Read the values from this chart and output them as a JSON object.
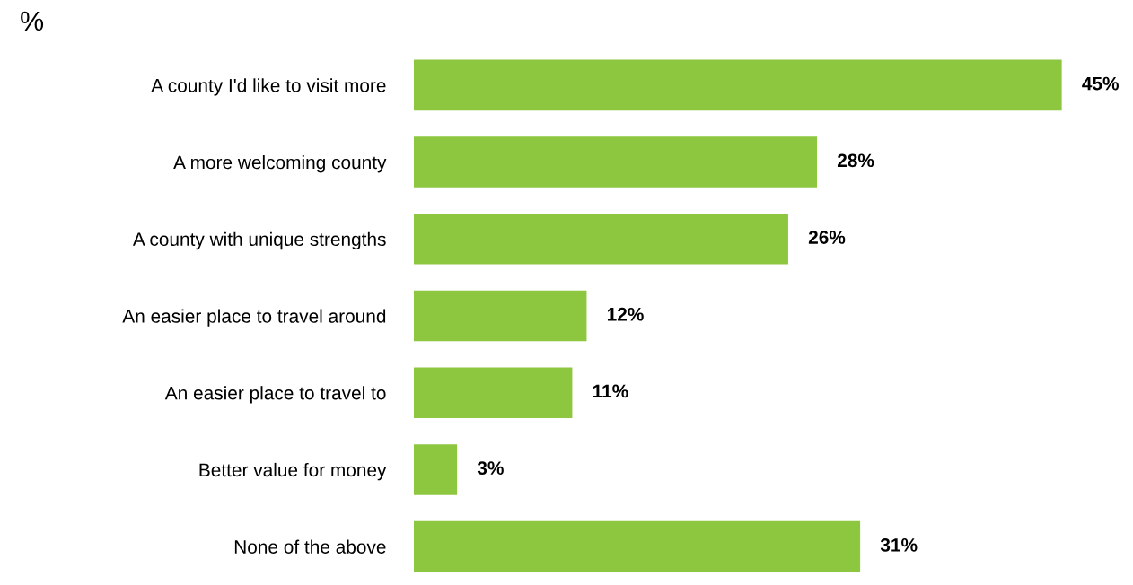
{
  "chart_data": {
    "type": "bar",
    "orientation": "horizontal",
    "title": "%",
    "categories": [
      "A county I'd like to visit more",
      "A more welcoming county",
      "A county with unique strengths",
      "An easier place to travel around",
      "An easier place to travel to",
      "Better value for money",
      "None of the above"
    ],
    "values": [
      45,
      28,
      26,
      12,
      11,
      3,
      31
    ],
    "value_labels": [
      "45%",
      "28%",
      "26%",
      "12%",
      "11%",
      "3%",
      "31%"
    ],
    "color": "#8dc63f",
    "tick_labels": "y",
    "grid": false,
    "legend": false
  }
}
